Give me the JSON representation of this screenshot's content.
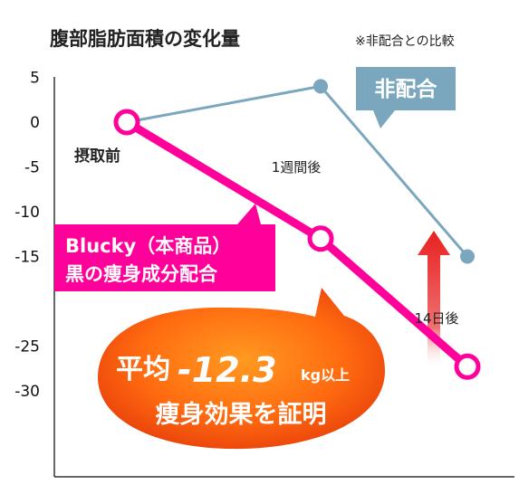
{
  "chart_data": {
    "type": "line",
    "title": "腹部脂肪面積の変化量",
    "note": "※非配合との比較",
    "yticks": [
      5,
      0,
      -5,
      -10,
      -15,
      -25,
      -30
    ],
    "ylim": [
      -30,
      5
    ],
    "series": [
      {
        "name": "非配合",
        "color": "#7ba7be",
        "points": [
          [
            0,
            0
          ],
          [
            1,
            4
          ],
          [
            2,
            -15
          ]
        ]
      },
      {
        "name_line1": "Blucky（本商品）",
        "name_line2": "黒の痩身成分配合",
        "color": "#ff009a",
        "points": [
          [
            0,
            0
          ],
          [
            1,
            -13
          ],
          [
            2,
            -27.3
          ]
        ]
      }
    ],
    "x_labels": [
      "摂取前",
      "1週間後",
      "14日後"
    ],
    "callout": {
      "avg_label": "平均",
      "avg_value": "-12.3",
      "unit": "kg以上",
      "tagline": "痩身効果を証明"
    },
    "colors": {
      "accent": "#ff009a",
      "control": "#7ba7be",
      "arrow": "#e82020",
      "bubble": "#ff7a10"
    }
  }
}
